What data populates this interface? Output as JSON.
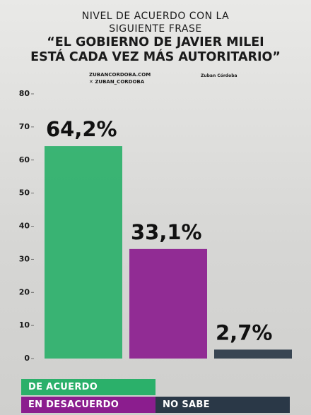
{
  "chart_data": {
    "type": "bar",
    "title": "NIVEL DE ACUERDO CON LA SIGUIENTE FRASE",
    "subtitle": "“EL GOBIERNO DE JAVIER MILEI ESTÁ CADA VEZ MÁS AUTORITARIO”",
    "sources": [
      "ZUBANCORDOBA.COM",
      "ZUBAN_CORDOBA"
    ],
    "brand": "Zuban Córdoba",
    "categories": [
      "DE ACUERDO",
      "EN DESACUERDO",
      "NO SABE"
    ],
    "values": [
      64.2,
      33.1,
      2.7
    ],
    "value_labels": [
      "64,2%",
      "33,1%",
      "2,7%"
    ],
    "colors": [
      "#2bb06a",
      "#8b1d8e",
      "#2a3847"
    ],
    "ylim": [
      0,
      80
    ],
    "yticks": [
      0,
      10,
      20,
      30,
      40,
      50,
      60,
      70,
      80
    ],
    "grid": false
  }
}
